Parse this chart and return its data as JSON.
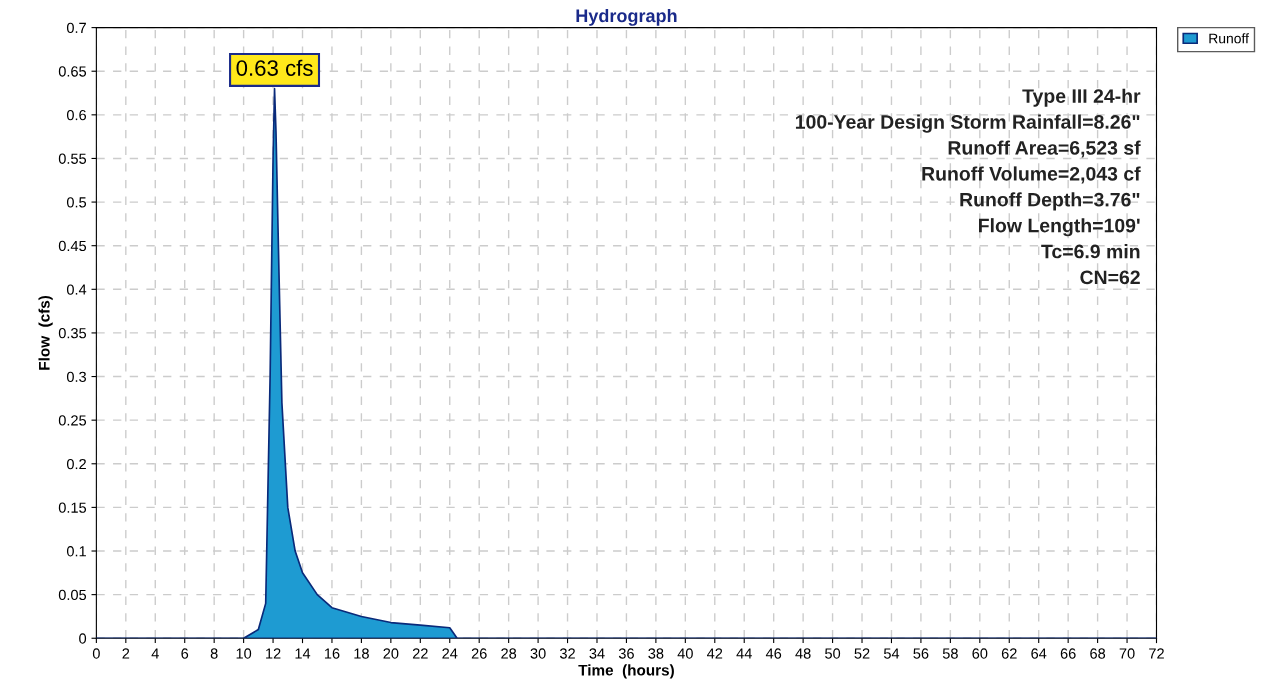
{
  "chart_data": {
    "type": "area",
    "title": "Hydrograph",
    "xlabel": "Time  (hours)",
    "ylabel": "Flow  (cfs)",
    "x": [
      0,
      10,
      11,
      11.5,
      11.8,
      12,
      12.1,
      12.2,
      12.4,
      12.6,
      13,
      13.5,
      14,
      15,
      16,
      18,
      20,
      22,
      24,
      24.5,
      26,
      72
    ],
    "series": [
      {
        "name": "Runoff",
        "color": "#1e9bd2",
        "values": [
          0,
          0,
          0.01,
          0.04,
          0.3,
          0.55,
          0.63,
          0.58,
          0.42,
          0.27,
          0.15,
          0.1,
          0.075,
          0.05,
          0.035,
          0.025,
          0.018,
          0.015,
          0.012,
          0,
          0,
          0
        ]
      }
    ],
    "xlim": [
      0,
      72
    ],
    "xticks": [
      0,
      2,
      4,
      6,
      8,
      10,
      12,
      14,
      16,
      18,
      20,
      22,
      24,
      26,
      28,
      30,
      32,
      34,
      36,
      38,
      40,
      42,
      44,
      46,
      48,
      50,
      52,
      54,
      56,
      58,
      60,
      62,
      64,
      66,
      68,
      70,
      72
    ],
    "ylim": [
      0,
      0.7
    ],
    "yticks": [
      0,
      0.05,
      0.1,
      0.15,
      0.2,
      0.25,
      0.3,
      0.35,
      0.4,
      0.45,
      0.5,
      0.55,
      0.6,
      0.65,
      0.7
    ],
    "grid": true,
    "legend": "top right",
    "annotations": [
      {
        "text": "0.63 cfs",
        "x": 12.1,
        "y": 0.63
      },
      "Type III 24-hr\n100-Year Design Storm Rainfall=8.26\"\nRunoff Area=6,523 sf\nRunoff Volume=2,043 cf\nRunoff Depth=3.76\"\nFlow Length=109'\nTc=6.9 min\nCN=62"
    ]
  }
}
